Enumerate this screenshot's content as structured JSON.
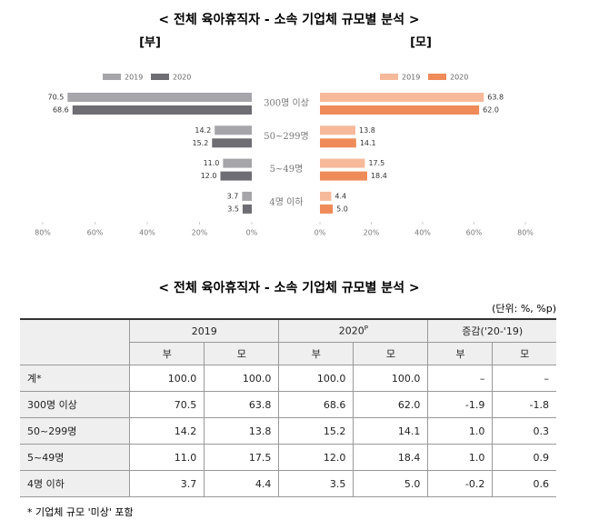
{
  "title": "< 전체 육아휴직자 - 소속 기업체 규모별 분석 >",
  "chart_data": [
    {
      "type": "bar",
      "orientation": "horizontal",
      "subtitle": "[부]",
      "categories": [
        "300명 이상",
        "50~299명",
        "5~49명",
        "4명 이하"
      ],
      "series": [
        {
          "name": "2019",
          "color": "#a6a5aa",
          "values": [
            70.5,
            14.2,
            11.0,
            3.7
          ],
          "value_labels": [
            "70.5",
            "14.2",
            "11.0",
            "3.7"
          ]
        },
        {
          "name": "2020",
          "color": "#6e6d73",
          "values": [
            68.6,
            15.2,
            12.0,
            3.5
          ],
          "value_labels": [
            "68.6",
            "15.2",
            "12.0",
            "3.5"
          ]
        }
      ],
      "xlim": [
        80,
        0
      ],
      "xticks": [
        {
          "value": 80,
          "label": "80%"
        },
        {
          "value": 60,
          "label": "60%"
        },
        {
          "value": 40,
          "label": "40%"
        },
        {
          "value": 20,
          "label": "20%"
        },
        {
          "value": 0,
          "label": "0%"
        }
      ]
    },
    {
      "type": "bar",
      "orientation": "horizontal",
      "subtitle": "[모]",
      "series": [
        {
          "name": "2019",
          "color": "#f6ba9b",
          "values": [
            63.8,
            13.8,
            17.5,
            4.4
          ],
          "value_labels": [
            "63.8",
            "13.8",
            "17.5",
            "4.4"
          ]
        },
        {
          "name": "2020",
          "color": "#ee8b58",
          "values": [
            62.0,
            14.1,
            18.4,
            5.0
          ],
          "value_labels": [
            "62.0",
            "14.1",
            "18.4",
            "5.0"
          ]
        }
      ],
      "xlim": [
        0,
        80
      ],
      "xticks": [
        {
          "value": 0,
          "label": "0%"
        },
        {
          "value": 20,
          "label": "20%"
        },
        {
          "value": 40,
          "label": "40%"
        },
        {
          "value": 60,
          "label": "60%"
        },
        {
          "value": 80,
          "label": "80%"
        }
      ]
    }
  ],
  "table": {
    "title": "< 전체 육아휴직자 - 소속 기업체 규모별 분석 >",
    "unit": "(단위: %, %p)",
    "header": {
      "years": [
        {
          "text": "2019"
        },
        {
          "text": "2020",
          "sup": "P"
        },
        {
          "text": "증감('20-'19)"
        }
      ],
      "sub": [
        "부",
        "모",
        "부",
        "모",
        "부",
        "모"
      ]
    },
    "rows": [
      [
        "계*",
        "100.0",
        "100.0",
        "100.0",
        "100.0",
        "–",
        "–"
      ],
      [
        "300명 이상",
        "70.5",
        "63.8",
        "68.6",
        "62.0",
        "-1.9",
        "-1.8"
      ],
      [
        "50~299명",
        "14.2",
        "13.8",
        "15.2",
        "14.1",
        "1.0",
        "0.3"
      ],
      [
        "5~49명",
        "11.0",
        "17.5",
        "12.0",
        "18.4",
        "1.0",
        "0.9"
      ],
      [
        "4명 이하",
        "3.7",
        "4.4",
        "3.5",
        "5.0",
        "-0.2",
        "0.6"
      ]
    ],
    "footnote": "* 기업체 규모 '미상' 포함"
  }
}
